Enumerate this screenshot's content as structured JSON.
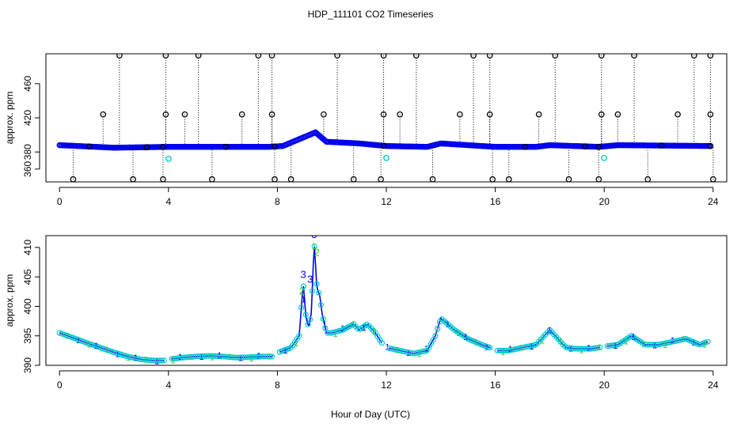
{
  "title": "HDP_111101  CO2 Timeseries",
  "xlabel": "Hour of Day (UTC)",
  "colors": {
    "primary": "#0000ee",
    "secondary": "#00cccc",
    "tertiary": "#33cc33",
    "outlier": "#000000",
    "frame": "#000000"
  },
  "chart_data": [
    {
      "type": "scatter",
      "panel": "top",
      "ylabel": "approx. ppm",
      "xlim": [
        -0.5,
        24.5
      ],
      "ylim": [
        345,
        495
      ],
      "xticks": [
        0,
        4,
        8,
        12,
        16,
        20,
        24
      ],
      "yticks": [
        360,
        380,
        420,
        460
      ],
      "baseline_anchors": [
        [
          0,
          388
        ],
        [
          2,
          385
        ],
        [
          4,
          386
        ],
        [
          7.7,
          386
        ],
        [
          8.2,
          387
        ],
        [
          8.8,
          395
        ],
        [
          9.4,
          403
        ],
        [
          9.8,
          392
        ],
        [
          11,
          390
        ],
        [
          12,
          387
        ],
        [
          13.5,
          386
        ],
        [
          14,
          390
        ],
        [
          16,
          386
        ],
        [
          17.5,
          386
        ],
        [
          18,
          388
        ],
        [
          19.8,
          386
        ],
        [
          20.5,
          388
        ],
        [
          23.9,
          387
        ]
      ],
      "outliers_high": [
        2.2,
        3.9,
        5.1,
        7.3,
        7.8,
        10.2,
        11.9,
        13.1,
        15.2,
        15.8,
        18.2,
        19.9,
        21.1,
        23.3,
        23.9
      ],
      "outliers_mid": [
        1.6,
        3.9,
        4.6,
        6.7,
        7.8,
        9.7,
        11.9,
        12.5,
        14.7,
        15.8,
        17.6,
        19.9,
        20.5,
        22.7,
        23.9
      ],
      "outliers_low": [
        0.5,
        2.7,
        3.8,
        5.6,
        7.9,
        8.5,
        10.8,
        11.8,
        13.7,
        15.9,
        16.5,
        18.7,
        19.8,
        21.6,
        24.0
      ],
      "outliers_base": [
        1.1,
        3.2,
        3.8,
        6.1,
        7.9,
        11.9,
        17.1,
        19.3,
        19.8,
        22.1,
        23.9
      ],
      "cyan_points": [
        [
          4.0,
          372
        ],
        [
          12.0,
          373
        ],
        [
          20.0,
          373
        ]
      ]
    },
    {
      "type": "line",
      "panel": "bottom",
      "ylabel": "approx. ppm",
      "xlim": [
        -0.5,
        24.5
      ],
      "ylim": [
        390,
        412
      ],
      "xticks": [
        0,
        4,
        8,
        12,
        16,
        20,
        24
      ],
      "yticks": [
        390,
        395,
        400,
        405,
        410
      ],
      "series": [
        {
          "name": "CO2",
          "x": [
            0,
            0.3,
            0.6,
            1.0,
            1.5,
            2.0,
            2.5,
            3.0,
            3.5,
            3.8,
            4.0,
            4.5,
            5.0,
            5.5,
            6.0,
            6.5,
            7.0,
            7.5,
            7.8,
            7.95,
            8.1,
            8.5,
            8.8,
            8.95,
            9.05,
            9.15,
            9.25,
            9.35,
            9.45,
            9.55,
            9.65,
            9.8,
            10.0,
            10.4,
            10.8,
            11.0,
            11.3,
            11.6,
            11.8,
            12.0,
            12.5,
            13.0,
            13.5,
            13.8,
            14.0,
            14.5,
            15.0,
            15.5,
            15.8,
            16.0,
            16.5,
            17.0,
            17.5,
            18.0,
            18.3,
            18.6,
            19.0,
            19.5,
            19.8,
            20.0,
            20.5,
            21.0,
            21.5,
            22.0,
            22.5,
            23.0,
            23.5,
            23.8
          ],
          "values": [
            395.5,
            395.0,
            394.5,
            393.8,
            393.0,
            392.2,
            391.5,
            391.0,
            390.8,
            390.8,
            391.0,
            391.3,
            391.5,
            391.6,
            391.5,
            391.3,
            391.4,
            391.5,
            391.5,
            392.0,
            392.3,
            393.0,
            395.0,
            404.0,
            398.0,
            396.5,
            399.0,
            411.0,
            403.0,
            402.0,
            398.5,
            395.5,
            395.5,
            396.0,
            397.0,
            396.0,
            397.0,
            395.5,
            394.0,
            393.0,
            392.5,
            392.0,
            392.5,
            395.0,
            398.0,
            396.0,
            394.5,
            393.5,
            393.0,
            392.5,
            392.5,
            393.0,
            393.5,
            396.0,
            394.5,
            393.0,
            392.8,
            392.8,
            393.0,
            393.2,
            393.5,
            395.0,
            393.5,
            393.5,
            394.0,
            394.5,
            393.5,
            394.0
          ]
        }
      ],
      "label_digits": [
        "1",
        "2",
        "3"
      ],
      "annotations": [
        {
          "text": "3",
          "x": 8.95,
          "y": 404.8
        },
        {
          "text": "3",
          "x": 9.35,
          "y": 411.6
        },
        {
          "text": "3",
          "x": 9.2,
          "y": 404.0
        },
        {
          "text": "2",
          "x": 9.45,
          "y": 408.5
        },
        {
          "text": "2",
          "x": 8.9,
          "y": 402.0
        }
      ]
    }
  ]
}
